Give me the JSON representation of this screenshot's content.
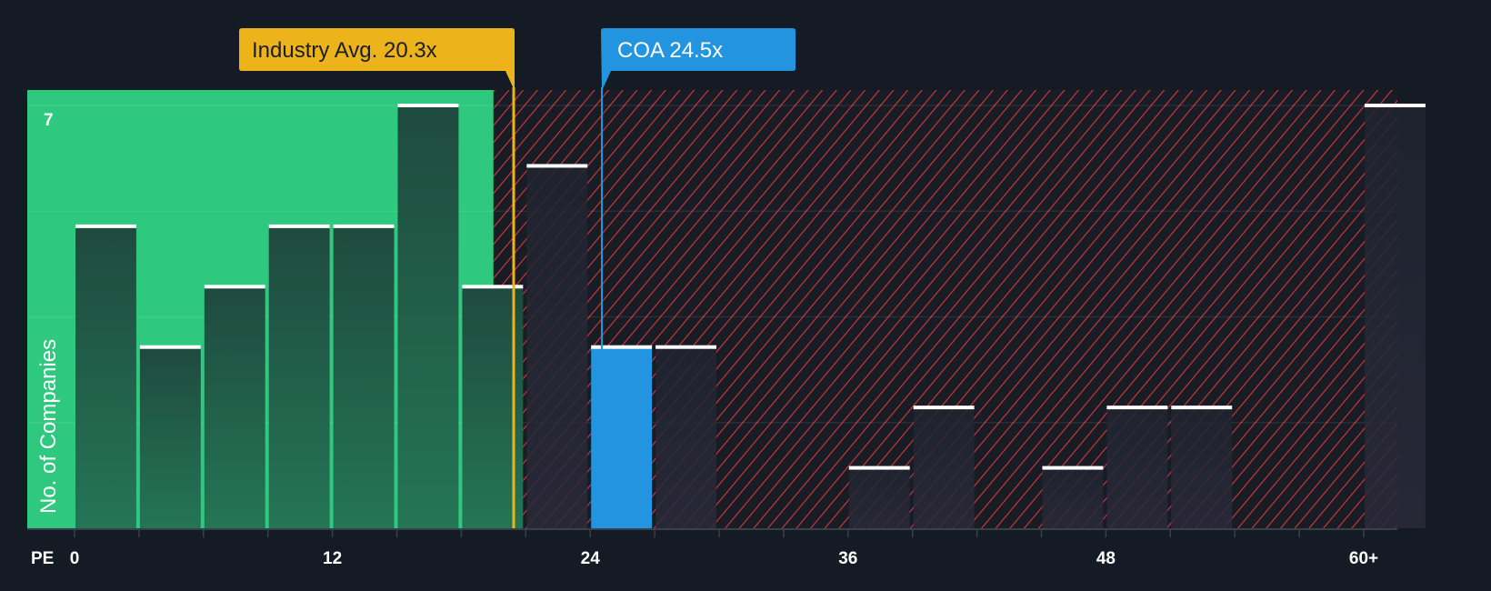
{
  "chart_data": {
    "type": "bar",
    "title": "",
    "xlabel": "PE",
    "ylabel": "No. of Companies",
    "x_tick_labels": [
      "0",
      "12",
      "24",
      "36",
      "48",
      "60+"
    ],
    "x_ticks": [
      0,
      12,
      24,
      36,
      48,
      60
    ],
    "y_tick_labels": [
      "7"
    ],
    "ylim": [
      0,
      7
    ],
    "xlim": [
      0,
      63
    ],
    "bin_width": 3,
    "bins": [
      {
        "from": 0,
        "count": 5
      },
      {
        "from": 3,
        "count": 3
      },
      {
        "from": 6,
        "count": 4
      },
      {
        "from": 9,
        "count": 5
      },
      {
        "from": 12,
        "count": 5
      },
      {
        "from": 15,
        "count": 7
      },
      {
        "from": 18,
        "count": 4
      },
      {
        "from": 21,
        "count": 6
      },
      {
        "from": 24,
        "count": 3,
        "highlight": true
      },
      {
        "from": 27,
        "count": 3
      },
      {
        "from": 30,
        "count": 0
      },
      {
        "from": 33,
        "count": 0
      },
      {
        "from": 36,
        "count": 1
      },
      {
        "from": 39,
        "count": 2
      },
      {
        "from": 42,
        "count": 0
      },
      {
        "from": 45,
        "count": 1
      },
      {
        "from": 48,
        "count": 2
      },
      {
        "from": 51,
        "count": 2
      },
      {
        "from": 54,
        "count": 0
      },
      {
        "from": 57,
        "count": 0
      },
      {
        "from": 60,
        "count": 7
      }
    ],
    "fair_region_end": 19.5,
    "annotations": [
      {
        "label": "Industry Avg. 20.3x",
        "value": 20.3,
        "color": "#ecb31a"
      },
      {
        "label": "COA 24.5x",
        "value": 24.5,
        "color": "#2394e0"
      }
    ],
    "colors": {
      "background": "#151b24",
      "green": "#2ec97f",
      "green_bar": "#1f4a3e",
      "hatch": "#d8383a",
      "highlight": "#2394e0"
    }
  }
}
